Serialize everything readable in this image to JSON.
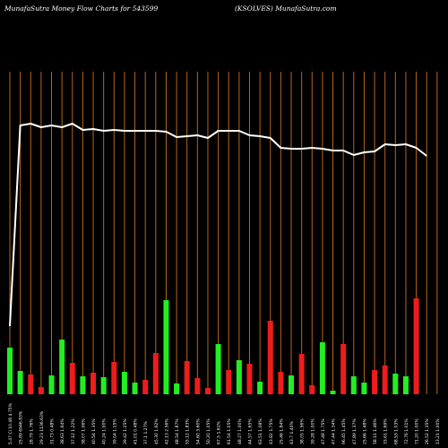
{
  "header": {
    "left_text": "MunafaSutra  Money Flow  Charts for 543599",
    "right_text": "(KSOLVES) MunafaSutra.com"
  },
  "colors": {
    "background": "#000000",
    "grid": "#b8651b",
    "up_bar": "#22ee22",
    "down_bar": "#ee1c1c",
    "price_line": "#ffffff",
    "text": "#ffffff"
  },
  "chart_data": {
    "type": "bar",
    "title": "",
    "xlabel": "",
    "ylabel": "",
    "categories": [
      "5.47 Cl 10.46 4.75%",
      "25.89 6946.83%",
      "28.79 1.76%",
      "29.23 1136.63%",
      "31.73 0.48%",
      "38.63 1.64%",
      "37.12 1.22%",
      "38.07 1.06%",
      "40.54 1.35%",
      "40.24 1.00%",
      "39.04 1.15%",
      "39.42 1.25%",
      "41.01 0.48%",
      "37.1 1.27%",
      "45.30 1.62%",
      "42.13 2.56%",
      "48.54 1.87%",
      "55.12 1.83%",
      "54.60 3.60%",
      "50.20 1.05%",
      "67.5 1.61%",
      "61.54 1.05%",
      "48.27 1.00%",
      "44.57 1.65%",
      "63.51 1.08%",
      "43.82 1.75%",
      "25.46 1.84%",
      "43.7 1.40%",
      "38.05 1.56%",
      "39.28 1.00%",
      "47.48 1.75%",
      "47.44 1.34%",
      "96.45 1.45%",
      "47.89 1.37%",
      "25.66 1.48%",
      "58.11 1.46%",
      "33.61 1.69%",
      "68.53 1.03%",
      "72.76 1.01%",
      "71.20 1.00%",
      "26.52 1.35%",
      "13.21 1.00%"
    ],
    "bar_colors": [
      "up",
      "up",
      "down",
      "down",
      "up",
      "up",
      "down",
      "up",
      "down",
      "up",
      "down",
      "up",
      "up",
      "down",
      "down",
      "up",
      "up",
      "down",
      "down",
      "down",
      "up",
      "down",
      "up",
      "down",
      "up",
      "down",
      "down",
      "up",
      "down",
      "down",
      "up",
      "up",
      "down",
      "up",
      "up",
      "down",
      "down",
      "up",
      "up",
      "down",
      "down",
      "down"
    ],
    "bar_values": [
      52,
      26,
      22,
      8,
      21,
      61,
      35,
      20,
      24,
      19,
      36,
      25,
      13,
      16,
      46,
      105,
      12,
      37,
      18,
      7,
      56,
      27,
      38,
      34,
      14,
      82,
      25,
      21,
      45,
      10,
      58,
      4,
      56,
      20,
      13,
      27,
      32,
      23,
      20,
      107,
      0,
      0
    ],
    "price_line": [
      76,
      300,
      302,
      298,
      300,
      298,
      302,
      295,
      296,
      294,
      295,
      294,
      294,
      294,
      294,
      293,
      287,
      288,
      289,
      286,
      294,
      294,
      294,
      289,
      288,
      286,
      275,
      274,
      274,
      275,
      274,
      272,
      272,
      267,
      270,
      271,
      279,
      278,
      279,
      275,
      266,
      0
    ],
    "ylim": [
      0,
      360
    ],
    "grid": true
  }
}
